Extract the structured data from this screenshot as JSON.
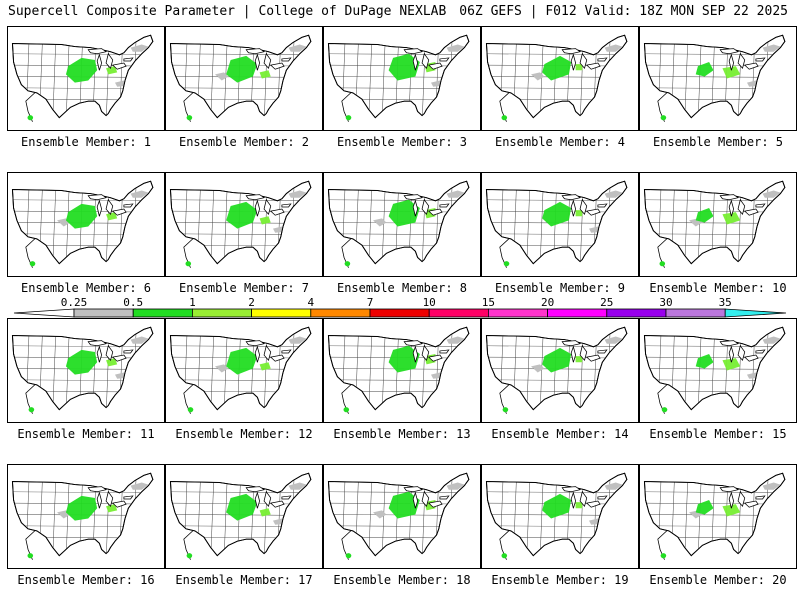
{
  "header": {
    "left": "Supercell Composite Parameter | College of DuPage NEXLAB",
    "right": "06Z GEFS | F012 Valid: 18Z MON SEP 22 2025"
  },
  "member_prefix": "Ensemble Member: ",
  "members": [
    1,
    2,
    3,
    4,
    5,
    6,
    7,
    8,
    9,
    10,
    11,
    12,
    13,
    14,
    15,
    16,
    17,
    18,
    19,
    20
  ],
  "colorbar": {
    "labels": [
      "0.25",
      "0.5",
      "1",
      "2",
      "4",
      "7",
      "10",
      "15",
      "20",
      "25",
      "30",
      "35"
    ],
    "colors": [
      "#c0c0c0",
      "#22dd22",
      "#99ee33",
      "#ffff00",
      "#ff8800",
      "#ee0000",
      "#ff0066",
      "#ff33cc",
      "#ff00ff",
      "#9900ee",
      "#bb77dd",
      "#33eeee"
    ]
  }
}
